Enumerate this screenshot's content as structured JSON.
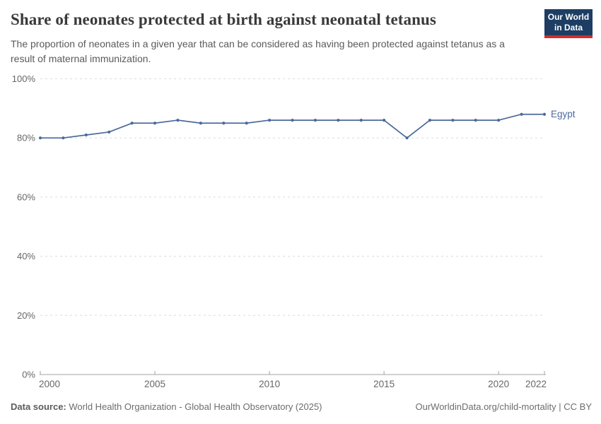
{
  "header": {
    "title": "Share of neonates protected at birth against neonatal tetanus",
    "subtitle": "The proportion of neonates in a given year that can be considered as having been protected against tetanus as a result of maternal immunization."
  },
  "logo": {
    "line1": "Our World",
    "line2": "in Data"
  },
  "chart_data": {
    "type": "line",
    "title": "Share of neonates protected at birth against neonatal tetanus",
    "x": [
      2000,
      2001,
      2002,
      2003,
      2004,
      2005,
      2006,
      2007,
      2008,
      2009,
      2010,
      2011,
      2012,
      2013,
      2014,
      2015,
      2016,
      2017,
      2018,
      2019,
      2020,
      2021,
      2022
    ],
    "series": [
      {
        "name": "Egypt",
        "color": "#4c6a9c",
        "values": [
          80,
          80,
          81,
          82,
          85,
          85,
          86,
          85,
          85,
          85,
          86,
          86,
          86,
          86,
          86,
          86,
          80,
          86,
          86,
          86,
          86,
          88,
          88
        ]
      }
    ],
    "xlabel": "",
    "ylabel": "",
    "ylim": [
      0,
      100
    ],
    "yticks": [
      0,
      20,
      40,
      60,
      80,
      100
    ],
    "ytick_suffix": "%",
    "xticks": [
      2000,
      2005,
      2010,
      2015,
      2020,
      2022
    ],
    "grid": "horizontal-dashed",
    "legend_position": "end-of-line-label"
  },
  "colors": {
    "line": "#4c6a9c",
    "axis": "#a3a3a3",
    "grid": "#dcdcdc",
    "tick_text": "#676767"
  },
  "footer": {
    "datasource_label": "Data source:",
    "datasource_text": " World Health Organization - Global Health Observatory (2025)",
    "credit": "OurWorldinData.org/child-mortality | CC BY"
  }
}
